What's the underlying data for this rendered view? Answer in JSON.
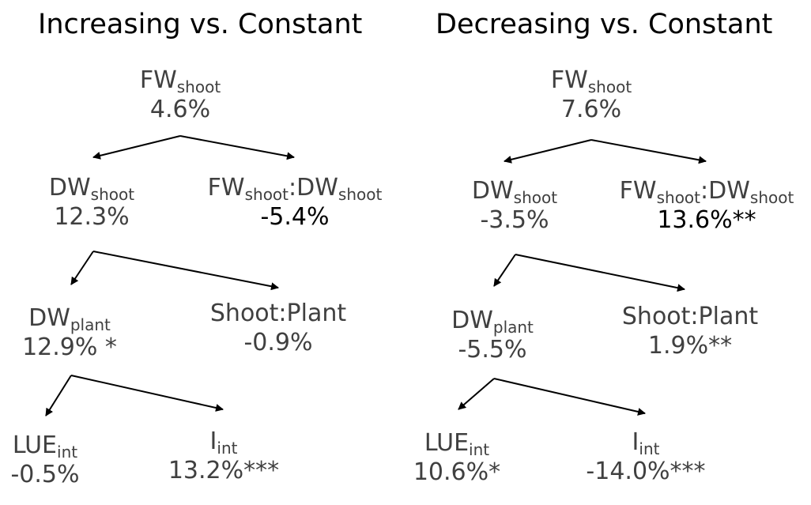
{
  "panels": [
    {
      "title": "Increasing vs. Constant",
      "nodes": {
        "fw_shoot": {
          "main": "FW",
          "sub": "shoot",
          "value": "4.6%"
        },
        "dw_shoot": {
          "main": "DW",
          "sub": "shoot",
          "value": "12.3%"
        },
        "fw_dw_shoot": {
          "main1": "FW",
          "sub1": "shoot",
          "sep": ":",
          "main2": "DW",
          "sub2": "shoot",
          "value": "-5.4%"
        },
        "dw_plant": {
          "main": "DW",
          "sub": "plant",
          "value": "12.9% *"
        },
        "shoot_plant": {
          "main": "Shoot:Plant",
          "value": "-0.9%"
        },
        "lue_int": {
          "main": "LUE",
          "sub": "int",
          "value": "-0.5%"
        },
        "i_int": {
          "main": "I",
          "sub": "int",
          "value": "13.2%***"
        }
      }
    },
    {
      "title": "Decreasing vs. Constant",
      "nodes": {
        "fw_shoot": {
          "main": "FW",
          "sub": "shoot",
          "value": "7.6%"
        },
        "dw_shoot": {
          "main": "DW",
          "sub": "shoot",
          "value": "-3.5%"
        },
        "fw_dw_shoot": {
          "main1": "FW",
          "sub1": "shoot",
          "sep": ":",
          "main2": "DW",
          "sub2": "shoot",
          "value": "13.6%**"
        },
        "dw_plant": {
          "main": "DW",
          "sub": "plant",
          "value": "-5.5%"
        },
        "shoot_plant": {
          "main": "Shoot:Plant",
          "value": "1.9%**"
        },
        "lue_int": {
          "main": "LUE",
          "sub": "int",
          "value": "10.6%*"
        },
        "i_int": {
          "main": "I",
          "sub": "int",
          "value": "-14.0%***"
        }
      }
    }
  ]
}
